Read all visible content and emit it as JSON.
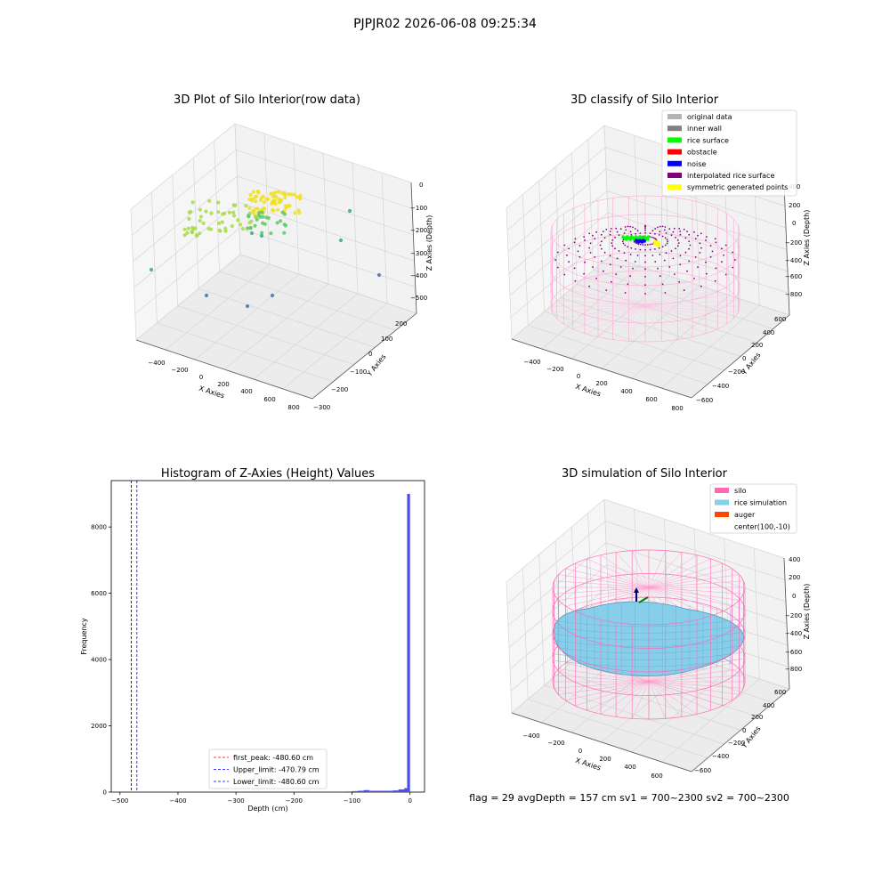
{
  "figure": {
    "suptitle": "PJPJR02 2026-06-08 09:25:34",
    "footer": "flag = 29   avgDepth = 157 cm   sv1 = 700~2300   sv2 = 700~2300"
  },
  "chart_data": [
    {
      "type": "scatter",
      "projection": "3d",
      "title": "3D Plot of Silo Interior(row data)",
      "xlabel": "X Axies",
      "ylabel": "Y Axies",
      "zlabel": "Z Axies (Depth)",
      "x_ticks": [
        "−400",
        "−200",
        "0",
        "200",
        "400",
        "600",
        "800"
      ],
      "y_ticks": [
        "−300",
        "−200",
        "−100",
        "0",
        "100",
        "200"
      ],
      "z_ticks": [
        "−500",
        "−400",
        "−300",
        "−200",
        "−100",
        "0"
      ],
      "xlim": [
        -500,
        850
      ],
      "ylim": [
        -320,
        230
      ],
      "zlim": [
        -520,
        20
      ],
      "colormap": "viridis",
      "grid": true
    },
    {
      "type": "scatter",
      "projection": "3d",
      "title": "3D classify of Silo Interior",
      "xlabel": "X Axies",
      "ylabel": "Y Axies",
      "zlabel": "Z Axies (Depth)",
      "x_ticks": [
        "−400",
        "−200",
        "0",
        "200",
        "400",
        "600",
        "800"
      ],
      "y_ticks": [
        "−600",
        "−400",
        "−200",
        "0",
        "200",
        "400",
        "600"
      ],
      "z_ticks": [
        "−800",
        "−600",
        "−400",
        "−200",
        "0",
        "200",
        "400"
      ],
      "grid": true,
      "legend_position": "top-right",
      "legend": [
        {
          "label": "original data",
          "color": "#b3b3b3"
        },
        {
          "label": "inner wall",
          "color": "#808080"
        },
        {
          "label": "rice surface",
          "color": "#00ff00"
        },
        {
          "label": "obstacle",
          "color": "#ff0000"
        },
        {
          "label": "noise",
          "color": "#0000ff"
        },
        {
          "label": "interpolated rice surface",
          "color": "#800080"
        },
        {
          "label": "symmetric generated points",
          "color": "#ffff00"
        }
      ]
    },
    {
      "type": "bar",
      "title": "Histogram of Z-Axies (Height) Values",
      "xlabel": "Depth (cm)",
      "ylabel": "Frequency",
      "xlim": [
        -515,
        25
      ],
      "ylim": [
        0,
        9400
      ],
      "x_ticks": [
        -500,
        -400,
        -300,
        -200,
        -100,
        0
      ],
      "x_tick_labels": [
        "−500",
        "−400",
        "−300",
        "−200",
        "−100",
        "0"
      ],
      "y_ticks": [
        0,
        2000,
        4000,
        6000,
        8000
      ],
      "y_tick_labels": [
        "0",
        "2000",
        "4000",
        "6000",
        "8000"
      ],
      "bar_color": "#4c4cf0",
      "bins": [
        {
          "x0": -110,
          "x1": -100,
          "value": 20
        },
        {
          "x0": -100,
          "x1": -90,
          "value": 30
        },
        {
          "x0": -90,
          "x1": -80,
          "value": 40
        },
        {
          "x0": -80,
          "x1": -70,
          "value": 60
        },
        {
          "x0": -70,
          "x1": -60,
          "value": 40
        },
        {
          "x0": -60,
          "x1": -50,
          "value": 40
        },
        {
          "x0": -50,
          "x1": -40,
          "value": 40
        },
        {
          "x0": -40,
          "x1": -30,
          "value": 40
        },
        {
          "x0": -30,
          "x1": -20,
          "value": 50
        },
        {
          "x0": -20,
          "x1": -10,
          "value": 80
        },
        {
          "x0": -10,
          "x1": -5,
          "value": 120
        },
        {
          "x0": -5,
          "x1": 0,
          "value": 9000
        }
      ],
      "vlines": [
        {
          "x": -480.6,
          "color": "#ff0000",
          "style": "dashed"
        },
        {
          "x": -470.79,
          "color": "#0000ff",
          "style": "dashed"
        },
        {
          "x": -480.6,
          "color": "#0000ff",
          "style": "dashed"
        }
      ],
      "legend_position": "lower-center",
      "legend": [
        {
          "label": "first_peak: -480.60 cm",
          "color": "#ff0000"
        },
        {
          "label": "Upper_limit: -470.79 cm",
          "color": "#0000ff"
        },
        {
          "label": "Lower_limit: -480.60 cm",
          "color": "#0000ff"
        }
      ]
    },
    {
      "type": "surface",
      "projection": "3d",
      "title": "3D simulation of Silo Interior",
      "xlabel": "X Axies",
      "ylabel": "Y Axies",
      "zlabel": "Z Axies (Depth)",
      "x_ticks": [
        "−400",
        "−200",
        "0",
        "200",
        "400",
        "600"
      ],
      "y_ticks": [
        "−600",
        "−400",
        "−200",
        "0",
        "200",
        "400",
        "600"
      ],
      "z_ticks": [
        "−800",
        "−600",
        "−400",
        "−200",
        "0",
        "200",
        "400"
      ],
      "grid": true,
      "legend_position": "top-right",
      "legend": [
        {
          "label": "silo",
          "color": "#ff69b4"
        },
        {
          "label": "rice simulation",
          "color": "#87ceeb"
        },
        {
          "label": "auger",
          "color": "#ff4500"
        },
        {
          "label": "center(100,-10)",
          "color": ""
        }
      ]
    }
  ]
}
